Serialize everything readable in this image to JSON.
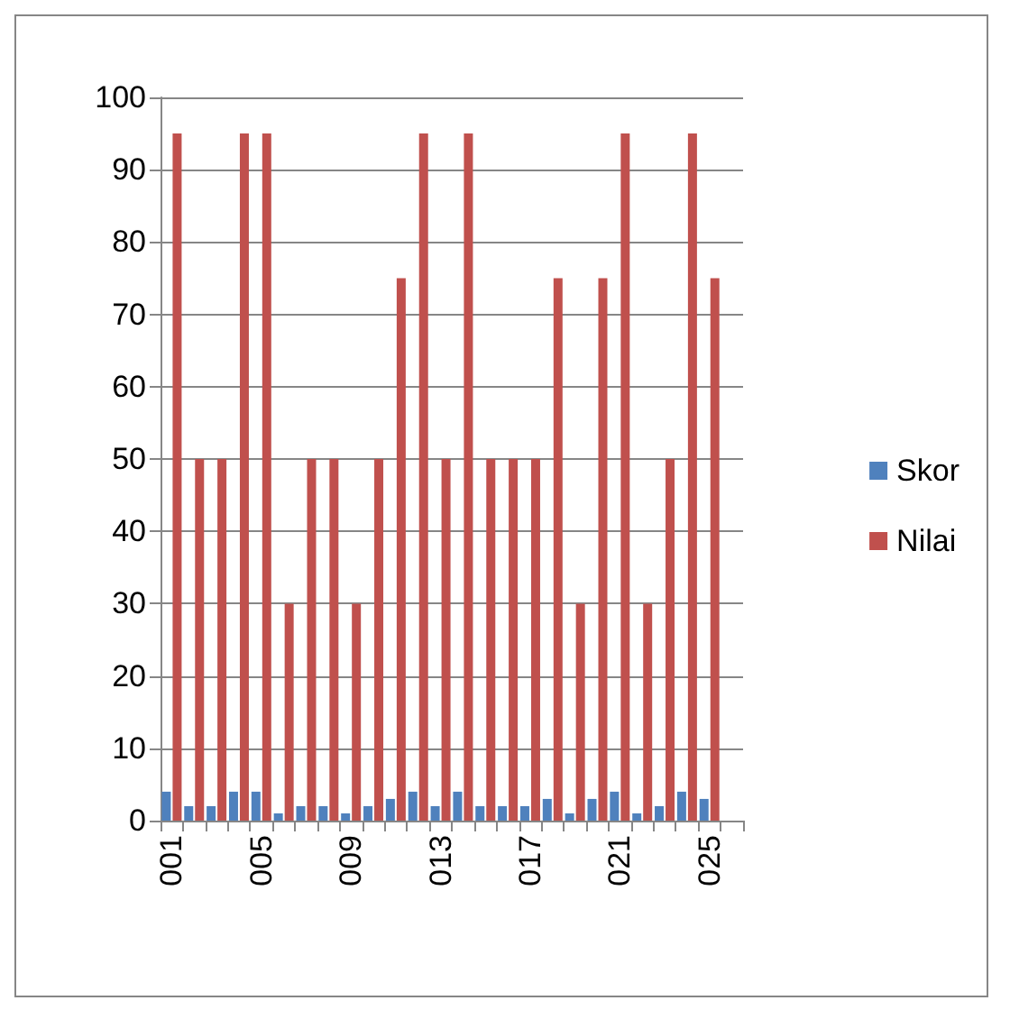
{
  "chart_data": {
    "type": "bar",
    "categories": [
      "001",
      null,
      null,
      null,
      "005",
      null,
      null,
      null,
      "009",
      null,
      null,
      null,
      "013",
      null,
      null,
      null,
      "017",
      null,
      null,
      null,
      "021",
      null,
      null,
      null,
      "025",
      null
    ],
    "series": [
      {
        "name": "Skor",
        "color": "#4f81bd",
        "values": [
          4,
          2,
          2,
          4,
          4,
          1,
          2,
          2,
          1,
          2,
          3,
          4,
          2,
          4,
          2,
          2,
          2,
          3,
          1,
          3,
          4,
          1,
          2,
          4,
          3,
          null
        ]
      },
      {
        "name": "Nilai",
        "color": "#c0504d",
        "values": [
          95,
          50,
          50,
          95,
          95,
          30,
          50,
          50,
          30,
          50,
          75,
          95,
          50,
          95,
          50,
          50,
          50,
          75,
          30,
          75,
          95,
          30,
          50,
          95,
          75,
          null
        ]
      }
    ],
    "ylim": [
      0,
      100
    ],
    "yticks": [
      0,
      10,
      20,
      30,
      40,
      50,
      60,
      70,
      80,
      90,
      100
    ],
    "grid": "y",
    "legend": "right"
  }
}
